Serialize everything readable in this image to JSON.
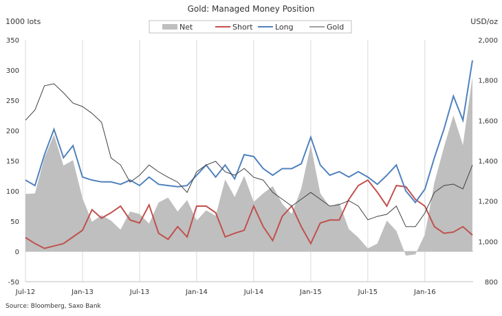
{
  "chart_data": {
    "type": "line",
    "title": "Gold:  Managed Money Position",
    "ylabel_left": "1000 lots",
    "ylabel_right": "USD/oz",
    "source": "Source: Bloomberg, Saxo Bank",
    "ylim_left": [
      -50,
      350
    ],
    "yticks_left": [
      "-50",
      "0",
      "50",
      "100",
      "150",
      "200",
      "250",
      "300",
      "350"
    ],
    "ylim_right": [
      800,
      2000
    ],
    "yticks_right": [
      "800",
      "1,000",
      "1,200",
      "1,400",
      "1,600",
      "1,800",
      "2,000"
    ],
    "xtick_labels": [
      "Jul-12",
      "Jan-13",
      "Jul-13",
      "Jan-14",
      "Jul-14",
      "Jan-15",
      "Jul-15",
      "Jan-16"
    ],
    "grid": "vertical",
    "legend_position": "top",
    "x": [
      "2012-07",
      "2012-08",
      "2012-09",
      "2012-10",
      "2012-11",
      "2012-12",
      "2013-01",
      "2013-02",
      "2013-03",
      "2013-04",
      "2013-05",
      "2013-06",
      "2013-07",
      "2013-08",
      "2013-09",
      "2013-10",
      "2013-11",
      "2013-12",
      "2014-01",
      "2014-02",
      "2014-03",
      "2014-04",
      "2014-05",
      "2014-06",
      "2014-07",
      "2014-08",
      "2014-09",
      "2014-10",
      "2014-11",
      "2014-12",
      "2015-01",
      "2015-02",
      "2015-03",
      "2015-04",
      "2015-05",
      "2015-06",
      "2015-07",
      "2015-08",
      "2015-09",
      "2015-10",
      "2015-11",
      "2015-12",
      "2016-01",
      "2016-02",
      "2016-03",
      "2016-04",
      "2016-05",
      "2016-06"
    ],
    "series": [
      {
        "name": "Net",
        "type": "area",
        "axis": "left",
        "color": "#bfbfbf",
        "values": [
          95,
          96,
          155,
          193,
          142,
          151,
          88,
          49,
          60,
          51,
          36,
          66,
          62,
          46,
          81,
          89,
          66,
          85,
          51,
          68,
          59,
          119,
          90,
          125,
          82,
          96,
          108,
          79,
          62,
          104,
          176,
          96,
          74,
          80,
          37,
          23,
          5,
          13,
          51,
          34,
          -7,
          -5,
          28,
          114,
          172,
          225,
          176,
          289
        ]
      },
      {
        "name": "Short",
        "type": "line",
        "axis": "left",
        "color": "#c0504d",
        "values": [
          23,
          13,
          5,
          9,
          13,
          24,
          35,
          69,
          55,
          64,
          75,
          52,
          47,
          77,
          30,
          20,
          41,
          24,
          75,
          75,
          64,
          24,
          30,
          35,
          75,
          41,
          18,
          58,
          75,
          41,
          13,
          47,
          52,
          52,
          86,
          109,
          118,
          98,
          75,
          109,
          107,
          86,
          75,
          41,
          30,
          32,
          41,
          27
        ]
      },
      {
        "name": "Long",
        "type": "line",
        "axis": "left",
        "color": "#4f81bd",
        "values": [
          118,
          109,
          160,
          202,
          155,
          175,
          123,
          118,
          115,
          115,
          111,
          118,
          109,
          123,
          111,
          109,
          107,
          109,
          126,
          143,
          123,
          143,
          120,
          160,
          157,
          137,
          126,
          137,
          137,
          145,
          189,
          143,
          126,
          132,
          123,
          132,
          123,
          111,
          126,
          143,
          100,
          81,
          103,
          155,
          202,
          257,
          217,
          316
        ]
      },
      {
        "name": "Gold",
        "type": "line",
        "axis": "right",
        "color": "#404040",
        "values": [
          1601,
          1652,
          1772,
          1782,
          1737,
          1686,
          1669,
          1635,
          1591,
          1414,
          1379,
          1294,
          1328,
          1379,
          1345,
          1318,
          1294,
          1243,
          1345,
          1379,
          1397,
          1345,
          1328,
          1362,
          1318,
          1304,
          1243,
          1209,
          1175,
          1209,
          1243,
          1209,
          1175,
          1182,
          1202,
          1175,
          1107,
          1124,
          1134,
          1175,
          1073,
          1073,
          1141,
          1243,
          1277,
          1284,
          1260,
          1379
        ]
      }
    ]
  }
}
